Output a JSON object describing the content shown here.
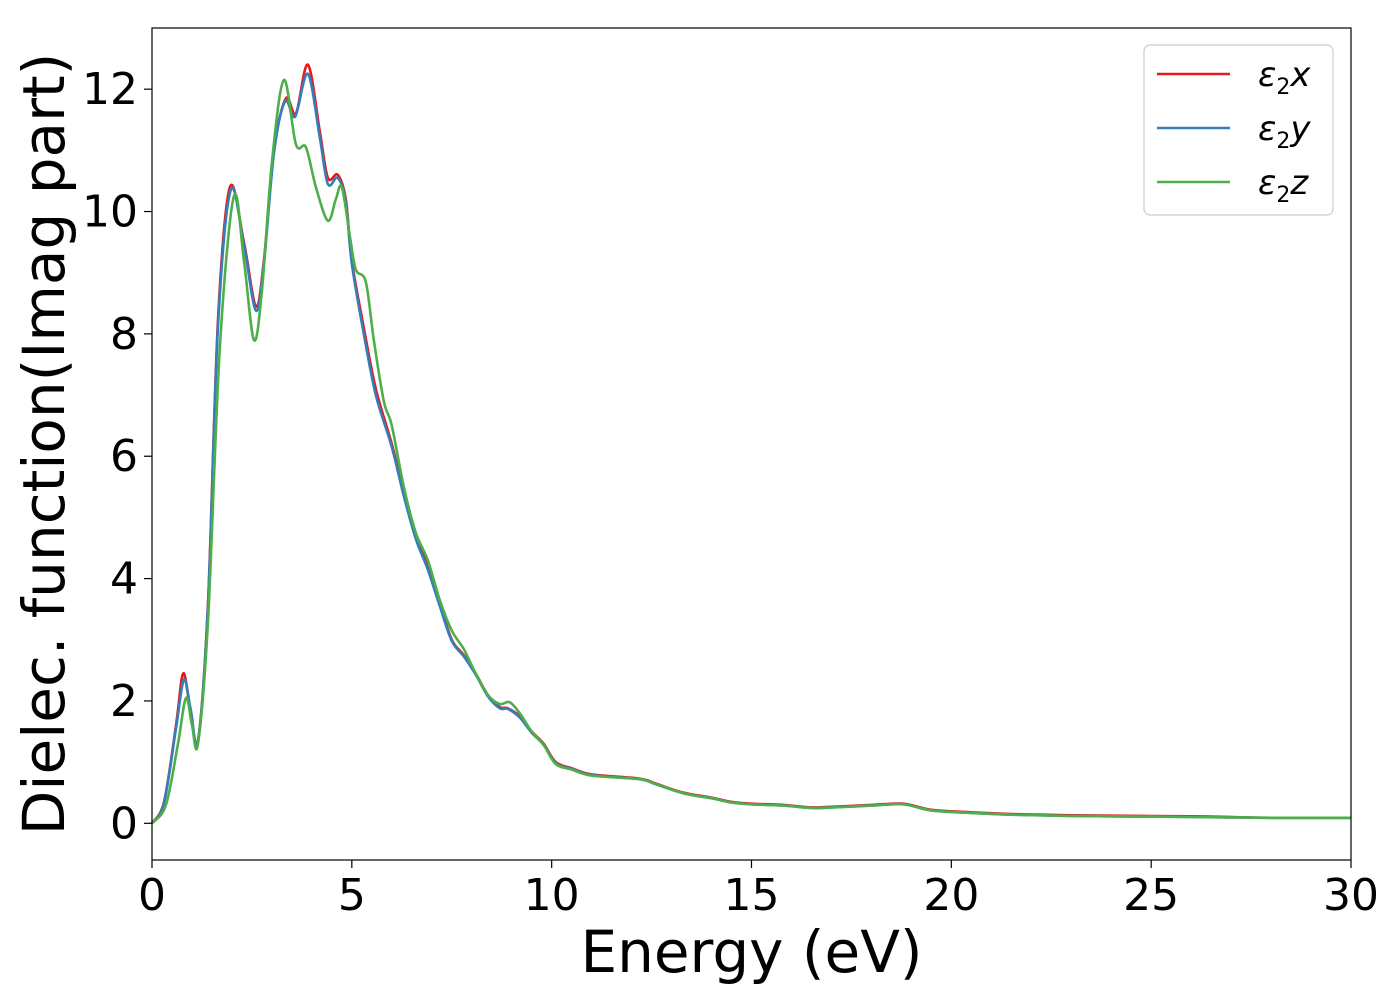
{
  "chart_data": {
    "type": "line",
    "xlabel": "Energy (eV)",
    "ylabel": "Dielec. function(Imag part)",
    "xlim": [
      0,
      30
    ],
    "ylim": [
      -0.6,
      13
    ],
    "xticks": [
      0,
      5,
      10,
      15,
      20,
      25,
      30
    ],
    "yticks": [
      0,
      2,
      4,
      6,
      8,
      10,
      12
    ],
    "grid": false,
    "legend_position": "top-right",
    "series": [
      {
        "name": "ε2x",
        "legend": {
          "base": "ε",
          "sub": "2",
          "tail": "x"
        },
        "color": "#e41a1c",
        "points": [
          [
            0,
            0
          ],
          [
            0.3,
            0.35
          ],
          [
            0.6,
            1.6
          ],
          [
            0.78,
            2.45
          ],
          [
            0.95,
            1.9
          ],
          [
            1.15,
            1.35
          ],
          [
            1.4,
            3.6
          ],
          [
            1.65,
            8.2
          ],
          [
            1.95,
            10.4
          ],
          [
            2.3,
            9.5
          ],
          [
            2.6,
            8.45
          ],
          [
            2.8,
            9.2
          ],
          [
            3.05,
            11.0
          ],
          [
            3.35,
            11.85
          ],
          [
            3.6,
            11.6
          ],
          [
            3.9,
            12.4
          ],
          [
            4.2,
            11.3
          ],
          [
            4.4,
            10.55
          ],
          [
            4.65,
            10.6
          ],
          [
            4.85,
            10.2
          ],
          [
            5.0,
            9.2
          ],
          [
            5.3,
            8.1
          ],
          [
            5.6,
            7.1
          ],
          [
            6.0,
            6.2
          ],
          [
            6.3,
            5.4
          ],
          [
            6.6,
            4.7
          ],
          [
            6.9,
            4.2
          ],
          [
            7.2,
            3.6
          ],
          [
            7.5,
            3.0
          ],
          [
            7.8,
            2.75
          ],
          [
            8.1,
            2.45
          ],
          [
            8.4,
            2.1
          ],
          [
            8.7,
            1.9
          ],
          [
            8.9,
            1.88
          ],
          [
            9.2,
            1.75
          ],
          [
            9.5,
            1.5
          ],
          [
            9.8,
            1.3
          ],
          [
            10.1,
            1.0
          ],
          [
            10.5,
            0.9
          ],
          [
            11.0,
            0.8
          ],
          [
            12.2,
            0.73
          ],
          [
            12.6,
            0.65
          ],
          [
            13.3,
            0.5
          ],
          [
            14.0,
            0.42
          ],
          [
            14.5,
            0.35
          ],
          [
            15.0,
            0.32
          ],
          [
            15.8,
            0.3
          ],
          [
            16.5,
            0.26
          ],
          [
            17.0,
            0.27
          ],
          [
            18.0,
            0.3
          ],
          [
            18.8,
            0.32
          ],
          [
            19.5,
            0.22
          ],
          [
            20.5,
            0.18
          ],
          [
            21.5,
            0.15
          ],
          [
            23,
            0.13
          ],
          [
            25,
            0.12
          ],
          [
            26.5,
            0.11
          ],
          [
            28,
            0.09
          ],
          [
            30,
            0.09
          ]
        ]
      },
      {
        "name": "ε2y",
        "legend": {
          "base": "ε",
          "sub": "2",
          "tail": "y"
        },
        "color": "#377eb8",
        "points": [
          [
            0,
            0
          ],
          [
            0.3,
            0.33
          ],
          [
            0.6,
            1.55
          ],
          [
            0.8,
            2.35
          ],
          [
            0.97,
            1.85
          ],
          [
            1.15,
            1.35
          ],
          [
            1.4,
            3.55
          ],
          [
            1.65,
            8.1
          ],
          [
            1.97,
            10.35
          ],
          [
            2.3,
            9.45
          ],
          [
            2.6,
            8.38
          ],
          [
            2.8,
            9.15
          ],
          [
            3.05,
            10.95
          ],
          [
            3.33,
            11.8
          ],
          [
            3.58,
            11.55
          ],
          [
            3.9,
            12.25
          ],
          [
            4.2,
            11.2
          ],
          [
            4.4,
            10.45
          ],
          [
            4.65,
            10.55
          ],
          [
            4.85,
            10.15
          ],
          [
            5.0,
            9.15
          ],
          [
            5.3,
            8.0
          ],
          [
            5.6,
            7.0
          ],
          [
            6.0,
            6.15
          ],
          [
            6.3,
            5.35
          ],
          [
            6.6,
            4.65
          ],
          [
            6.9,
            4.15
          ],
          [
            7.2,
            3.55
          ],
          [
            7.5,
            2.98
          ],
          [
            7.8,
            2.73
          ],
          [
            8.1,
            2.43
          ],
          [
            8.4,
            2.08
          ],
          [
            8.7,
            1.88
          ],
          [
            8.9,
            1.87
          ],
          [
            9.2,
            1.73
          ],
          [
            9.5,
            1.48
          ],
          [
            9.8,
            1.28
          ],
          [
            10.1,
            0.98
          ],
          [
            10.5,
            0.89
          ],
          [
            11.0,
            0.79
          ],
          [
            12.2,
            0.72
          ],
          [
            12.6,
            0.64
          ],
          [
            13.3,
            0.49
          ],
          [
            14.0,
            0.41
          ],
          [
            14.5,
            0.34
          ],
          [
            15.0,
            0.31
          ],
          [
            15.8,
            0.29
          ],
          [
            16.5,
            0.25
          ],
          [
            17.0,
            0.26
          ],
          [
            18.0,
            0.29
          ],
          [
            18.8,
            0.31
          ],
          [
            19.5,
            0.21
          ],
          [
            20.5,
            0.17
          ],
          [
            21.5,
            0.14
          ],
          [
            23,
            0.12
          ],
          [
            25,
            0.11
          ],
          [
            26.5,
            0.1
          ],
          [
            28,
            0.09
          ],
          [
            30,
            0.09
          ]
        ]
      },
      {
        "name": "ε2z",
        "legend": {
          "base": "ε",
          "sub": "2",
          "tail": "z"
        },
        "color": "#4daf4a",
        "points": [
          [
            0,
            0
          ],
          [
            0.35,
            0.3
          ],
          [
            0.65,
            1.3
          ],
          [
            0.85,
            2.05
          ],
          [
            1.0,
            1.6
          ],
          [
            1.15,
            1.3
          ],
          [
            1.4,
            3.3
          ],
          [
            1.7,
            7.8
          ],
          [
            2.05,
            10.25
          ],
          [
            2.3,
            9.2
          ],
          [
            2.55,
            7.9
          ],
          [
            2.75,
            8.7
          ],
          [
            3.0,
            10.8
          ],
          [
            3.3,
            12.15
          ],
          [
            3.6,
            11.1
          ],
          [
            3.85,
            11.05
          ],
          [
            4.1,
            10.4
          ],
          [
            4.4,
            9.85
          ],
          [
            4.6,
            10.2
          ],
          [
            4.75,
            10.4
          ],
          [
            4.95,
            9.6
          ],
          [
            5.1,
            9.05
          ],
          [
            5.35,
            8.85
          ],
          [
            5.55,
            7.9
          ],
          [
            5.8,
            6.9
          ],
          [
            6.0,
            6.5
          ],
          [
            6.3,
            5.5
          ],
          [
            6.6,
            4.75
          ],
          [
            6.9,
            4.3
          ],
          [
            7.2,
            3.65
          ],
          [
            7.5,
            3.15
          ],
          [
            7.8,
            2.85
          ],
          [
            8.1,
            2.45
          ],
          [
            8.4,
            2.1
          ],
          [
            8.7,
            1.95
          ],
          [
            8.95,
            1.98
          ],
          [
            9.2,
            1.8
          ],
          [
            9.5,
            1.5
          ],
          [
            9.8,
            1.28
          ],
          [
            10.1,
            0.97
          ],
          [
            10.5,
            0.88
          ],
          [
            11.0,
            0.78
          ],
          [
            12.2,
            0.72
          ],
          [
            12.6,
            0.64
          ],
          [
            13.3,
            0.49
          ],
          [
            14.0,
            0.41
          ],
          [
            14.5,
            0.34
          ],
          [
            15.0,
            0.31
          ],
          [
            15.8,
            0.29
          ],
          [
            16.5,
            0.25
          ],
          [
            17.0,
            0.26
          ],
          [
            18.0,
            0.29
          ],
          [
            18.8,
            0.31
          ],
          [
            19.5,
            0.21
          ],
          [
            20.5,
            0.17
          ],
          [
            21.5,
            0.14
          ],
          [
            23,
            0.12
          ],
          [
            25,
            0.11
          ],
          [
            26.5,
            0.1
          ],
          [
            28,
            0.09
          ],
          [
            30,
            0.09
          ]
        ]
      }
    ]
  }
}
